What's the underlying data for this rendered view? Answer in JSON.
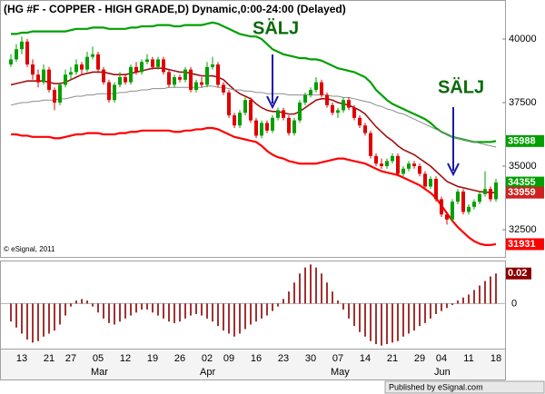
{
  "chart_data": {
    "type": "candlestick",
    "title": "(HG #F - COPPER - HIGH GRADE,D) Dynamic,0:00-24:00 (Delayed)",
    "copyright": "© eSignal, 2011",
    "footer": "Published by eSignal.com",
    "annotations": [
      "SÄLJ",
      "SÄLJ"
    ],
    "categories": [
      null,
      null,
      "13",
      null,
      null,
      null,
      null,
      "21",
      null,
      null,
      null,
      "27",
      null,
      null,
      null,
      null,
      "05",
      null,
      null,
      null,
      null,
      "12",
      null,
      null,
      null,
      null,
      "19",
      null,
      null,
      null,
      null,
      "26",
      null,
      null,
      null,
      null,
      "02",
      null,
      null,
      null,
      "09",
      null,
      null,
      null,
      null,
      "16",
      null,
      null,
      null,
      null,
      "23",
      null,
      null,
      null,
      null,
      "30",
      null,
      null,
      null,
      null,
      "07",
      null,
      null,
      null,
      null,
      "14",
      null,
      null,
      null,
      null,
      "21",
      null,
      null,
      null,
      null,
      "29",
      null,
      null,
      null,
      "04",
      null,
      null,
      null,
      null,
      "11",
      null,
      null,
      null,
      null,
      "18"
    ],
    "month_categories": [
      null,
      null,
      null,
      null,
      null,
      null,
      null,
      null,
      null,
      null,
      null,
      null,
      null,
      null,
      null,
      null,
      "Mar",
      null,
      null,
      null,
      null,
      null,
      null,
      null,
      null,
      null,
      null,
      null,
      null,
      null,
      null,
      null,
      null,
      null,
      null,
      null,
      "Apr",
      null,
      null,
      null,
      null,
      null,
      null,
      null,
      null,
      null,
      null,
      null,
      null,
      null,
      null,
      null,
      null,
      null,
      null,
      null,
      null,
      null,
      null,
      null,
      "May",
      null,
      null,
      null,
      null,
      null,
      null,
      null,
      null,
      null,
      null,
      null,
      null,
      null,
      null,
      null,
      null,
      null,
      null,
      "Jun",
      null,
      null,
      null,
      null,
      null,
      null,
      null,
      null,
      null,
      null
    ],
    "up_color": "#00a000",
    "down_color": "#e00000",
    "ohlc": [
      [
        39000,
        39400,
        38900,
        39200
      ],
      [
        39200,
        39800,
        39100,
        39600
      ],
      [
        39600,
        40100,
        39400,
        39900
      ],
      [
        39900,
        40000,
        38900,
        39000
      ],
      [
        39000,
        39200,
        38400,
        38600
      ],
      [
        38600,
        38800,
        38100,
        38300
      ],
      [
        38300,
        39000,
        38200,
        38800
      ],
      [
        38800,
        38900,
        37900,
        38000
      ],
      [
        38000,
        38100,
        37200,
        37500
      ],
      [
        37500,
        38300,
        37400,
        38200
      ],
      [
        38200,
        38800,
        38100,
        38600
      ],
      [
        38600,
        38900,
        38400,
        38700
      ],
      [
        38700,
        39200,
        38600,
        39000
      ],
      [
        39000,
        39100,
        38600,
        38800
      ],
      [
        38800,
        39500,
        38700,
        39300
      ],
      [
        39300,
        39700,
        39200,
        39400
      ],
      [
        39400,
        39500,
        38700,
        38800
      ],
      [
        38800,
        38900,
        38200,
        38300
      ],
      [
        38300,
        38400,
        37500,
        37600
      ],
      [
        37600,
        38300,
        37500,
        38200
      ],
      [
        38200,
        38700,
        38100,
        38500
      ],
      [
        38500,
        38600,
        38200,
        38300
      ],
      [
        38300,
        39000,
        38200,
        38900
      ],
      [
        38900,
        39100,
        38600,
        38700
      ],
      [
        38700,
        39200,
        38600,
        39100
      ],
      [
        39100,
        39400,
        39000,
        39200
      ],
      [
        39200,
        39300,
        38800,
        38900
      ],
      [
        38900,
        39300,
        38800,
        39200
      ],
      [
        39200,
        39300,
        38600,
        38700
      ],
      [
        38700,
        38800,
        38100,
        38200
      ],
      [
        38200,
        38600,
        38100,
        38500
      ],
      [
        38500,
        38600,
        38300,
        38400
      ],
      [
        38400,
        38900,
        38300,
        38800
      ],
      [
        38800,
        38900,
        37900,
        38000
      ],
      [
        38000,
        38400,
        37900,
        38300
      ],
      [
        38300,
        38500,
        38100,
        38200
      ],
      [
        38200,
        39100,
        38100,
        38900
      ],
      [
        38900,
        39300,
        38800,
        39000
      ],
      [
        39000,
        39100,
        38100,
        38200
      ],
      [
        38200,
        38300,
        37800,
        37900
      ],
      [
        37900,
        38000,
        36900,
        37000
      ],
      [
        37000,
        37100,
        36500,
        36600
      ],
      [
        36600,
        37200,
        36500,
        37100
      ],
      [
        37100,
        37700,
        37000,
        37600
      ],
      [
        37600,
        37700,
        36700,
        36800
      ],
      [
        36800,
        36900,
        36100,
        36200
      ],
      [
        36200,
        36800,
        36100,
        36700
      ],
      [
        36700,
        36800,
        36300,
        36400
      ],
      [
        36400,
        37000,
        36300,
        36900
      ],
      [
        36900,
        37300,
        36800,
        37200
      ],
      [
        37200,
        37300,
        36800,
        36900
      ],
      [
        36900,
        37000,
        36200,
        36300
      ],
      [
        36300,
        36900,
        36200,
        36800
      ],
      [
        36800,
        37600,
        36700,
        37500
      ],
      [
        37500,
        37900,
        37400,
        37800
      ],
      [
        37800,
        38100,
        37700,
        38000
      ],
      [
        38000,
        38500,
        37900,
        38300
      ],
      [
        38300,
        38400,
        37700,
        37800
      ],
      [
        37800,
        37900,
        37300,
        37400
      ],
      [
        37400,
        37500,
        37000,
        37100
      ],
      [
        37100,
        37300,
        36900,
        37200
      ],
      [
        37200,
        37700,
        37100,
        37600
      ],
      [
        37600,
        37700,
        37200,
        37300
      ],
      [
        37300,
        37400,
        36800,
        36900
      ],
      [
        36900,
        37000,
        36500,
        36600
      ],
      [
        36600,
        36700,
        36200,
        36300
      ],
      [
        36300,
        36400,
        35300,
        35400
      ],
      [
        35400,
        35500,
        35000,
        35100
      ],
      [
        35100,
        35300,
        34900,
        35000
      ],
      [
        35000,
        35300,
        34900,
        35200
      ],
      [
        35200,
        35500,
        35100,
        35400
      ],
      [
        35400,
        35500,
        34600,
        34700
      ],
      [
        34700,
        35000,
        34600,
        34900
      ],
      [
        34900,
        35200,
        34800,
        35100
      ],
      [
        35100,
        35200,
        34900,
        35000
      ],
      [
        35000,
        35100,
        34600,
        34700
      ],
      [
        34700,
        34800,
        34100,
        34200
      ],
      [
        34200,
        34600,
        34100,
        34500
      ],
      [
        34500,
        34600,
        33600,
        33700
      ],
      [
        33700,
        33800,
        33000,
        33100
      ],
      [
        33100,
        33200,
        32700,
        32900
      ],
      [
        32900,
        33700,
        32800,
        33600
      ],
      [
        33600,
        34100,
        33500,
        34000
      ],
      [
        34000,
        34100,
        33100,
        33200
      ],
      [
        33200,
        33500,
        33100,
        33400
      ],
      [
        33400,
        33700,
        33300,
        33600
      ],
      [
        33600,
        34000,
        33500,
        33900
      ],
      [
        33900,
        34800,
        33800,
        34100
      ],
      [
        34100,
        34200,
        33600,
        33700
      ],
      [
        33700,
        34500,
        33600,
        34355
      ]
    ],
    "series": [
      {
        "color": "#00a000",
        "width": 2.2,
        "values": [
          40200,
          40200,
          40250,
          40250,
          40300,
          40300,
          40300,
          40300,
          40300,
          40300,
          40300,
          40350,
          40400,
          40400,
          40400,
          40450,
          40450,
          40450,
          40400,
          40400,
          40400,
          40400,
          40450,
          40450,
          40500,
          40500,
          40500,
          40550,
          40550,
          40550,
          40500,
          40500,
          40550,
          40550,
          40550,
          40550,
          40600,
          40650,
          40600,
          40500,
          40400,
          40300,
          40200,
          40150,
          40100,
          40100,
          40000,
          39800,
          39600,
          39500,
          39400,
          39350,
          39300,
          39250,
          39250,
          39200,
          39200,
          39150,
          39050,
          38950,
          38850,
          38800,
          38750,
          38700,
          38600,
          38500,
          38300,
          38000,
          37800,
          37600,
          37450,
          37350,
          37250,
          37150,
          37050,
          36950,
          36850,
          36700,
          36500,
          36350,
          36250,
          36150,
          36100,
          36050,
          36000,
          35950,
          35950,
          35950,
          35950,
          35988
        ]
      },
      {
        "color": "#ff0000",
        "width": 2.2,
        "values": [
          36250,
          36250,
          36200,
          36200,
          36150,
          36150,
          36150,
          36150,
          36100,
          36100,
          36150,
          36200,
          36250,
          36250,
          36300,
          36300,
          36300,
          36250,
          36250,
          36250,
          36300,
          36300,
          36350,
          36350,
          36400,
          36400,
          36400,
          36400,
          36400,
          36400,
          36350,
          36350,
          36400,
          36400,
          36450,
          36450,
          36500,
          36500,
          36450,
          36350,
          36250,
          36150,
          36100,
          36050,
          36000,
          35950,
          35800,
          35600,
          35450,
          35350,
          35300,
          35200,
          35150,
          35100,
          35100,
          35100,
          35100,
          35150,
          35200,
          35250,
          35300,
          35300,
          35250,
          35200,
          35150,
          35100,
          35000,
          34900,
          34800,
          34750,
          34700,
          34650,
          34550,
          34450,
          34350,
          34250,
          34100,
          33950,
          33750,
          33450,
          33150,
          32850,
          32600,
          32400,
          32200,
          32050,
          31950,
          31900,
          31900,
          31931
        ]
      },
      {
        "color": "#a01010",
        "width": 1.6,
        "values": [
          38200,
          38250,
          38300,
          38350,
          38350,
          38350,
          38350,
          38300,
          38250,
          38250,
          38300,
          38400,
          38500,
          38600,
          38650,
          38700,
          38700,
          38700,
          38650,
          38600,
          38600,
          38600,
          38650,
          38700,
          38750,
          38800,
          38850,
          38850,
          38850,
          38800,
          38750,
          38700,
          38700,
          38650,
          38600,
          38550,
          38550,
          38550,
          38500,
          38400,
          38200,
          38000,
          37850,
          37750,
          37650,
          37450,
          37300,
          37200,
          37150,
          37150,
          37100,
          37050,
          37050,
          37150,
          37300,
          37450,
          37600,
          37650,
          37650,
          37600,
          37500,
          37450,
          37400,
          37300,
          37200,
          37050,
          36800,
          36550,
          36350,
          36150,
          36000,
          35800,
          35650,
          35550,
          35450,
          35300,
          35150,
          35000,
          34800,
          34600,
          34400,
          34300,
          34200,
          34150,
          34100,
          34050,
          34000,
          33980,
          33960,
          33959
        ]
      },
      {
        "color": "#8c8c8c",
        "width": 1,
        "values": [
          37400,
          37450,
          37500,
          37500,
          37550,
          37550,
          37600,
          37600,
          37600,
          37650,
          37650,
          37700,
          37750,
          37750,
          37800,
          37800,
          37850,
          37850,
          37850,
          37850,
          37900,
          37900,
          37950,
          37950,
          38000,
          38000,
          38050,
          38050,
          38050,
          38100,
          38100,
          38100,
          38100,
          38100,
          38100,
          38100,
          38150,
          38150,
          38100,
          38100,
          38050,
          38000,
          38000,
          37950,
          37950,
          37900,
          37900,
          37850,
          37850,
          37850,
          37850,
          37800,
          37800,
          37800,
          37800,
          37800,
          37800,
          37800,
          37800,
          37750,
          37750,
          37700,
          37700,
          37650,
          37600,
          37550,
          37500,
          37400,
          37350,
          37250,
          37200,
          37100,
          37050,
          36950,
          36850,
          36750,
          36650,
          36550,
          36450,
          36350,
          36250,
          36150,
          36100,
          36050,
          36000,
          35950,
          35900,
          35850,
          35800,
          35750
        ]
      }
    ],
    "last_value_labels": [
      {
        "path": "chart_data.series.0.values.89",
        "color": "#00a000"
      },
      {
        "path": "chart_data.ohlc.89.3",
        "color": "#00a000"
      },
      {
        "path": "chart_data.series.2.values.89",
        "color": "#d02020"
      },
      {
        "path": "chart_data.series.1.values.89",
        "color": "#ff0000"
      }
    ],
    "ylim": [
      31430,
      41500
    ],
    "yticks": [
      32500,
      35000,
      37500,
      40000
    ],
    "oscillator": {
      "type": "bar",
      "color": "#8b0000",
      "values": [
        -0.012,
        -0.016,
        -0.02,
        -0.024,
        -0.026,
        -0.025,
        -0.022,
        -0.02,
        -0.018,
        -0.014,
        -0.008,
        -0.002,
        0.002,
        0.003,
        0.002,
        -0.002,
        -0.006,
        -0.01,
        -0.013,
        -0.014,
        -0.012,
        -0.01,
        -0.008,
        -0.006,
        -0.004,
        -0.004,
        -0.006,
        -0.008,
        -0.01,
        -0.012,
        -0.013,
        -0.012,
        -0.01,
        -0.008,
        -0.007,
        -0.008,
        -0.01,
        -0.012,
        -0.015,
        -0.018,
        -0.02,
        -0.022,
        -0.02,
        -0.017,
        -0.014,
        -0.012,
        -0.01,
        -0.008,
        -0.005,
        -0.002,
        0.003,
        0.008,
        0.014,
        0.02,
        0.024,
        0.026,
        0.024,
        0.02,
        0.014,
        0.008,
        0.002,
        -0.004,
        -0.01,
        -0.015,
        -0.019,
        -0.022,
        -0.025,
        -0.027,
        -0.028,
        -0.027,
        -0.026,
        -0.025,
        -0.022,
        -0.02,
        -0.018,
        -0.015,
        -0.013,
        -0.01,
        -0.007,
        -0.005,
        -0.003,
        -0.001,
        0.002,
        0.004,
        0.006,
        0.009,
        0.012,
        0.015,
        0.018,
        0.02
      ],
      "ylim": [
        -0.03,
        0.028
      ],
      "yticks": [
        0
      ]
    }
  }
}
